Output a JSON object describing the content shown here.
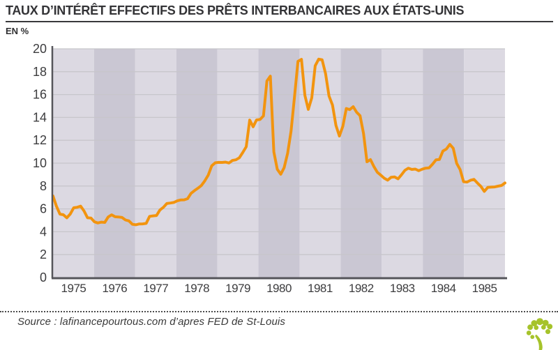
{
  "header": {
    "title": "TAUX D’INTÉRÊT EFFECTIFS DES PRÊTS INTERBANCAIRES AUX ÉTATS-UNIS",
    "unit_label": "EN %"
  },
  "chart_data": {
    "type": "line",
    "title": "TAUX D’INTÉRÊT EFFECTIFS DES PRÊTS INTERBANCAIRES AUX ÉTATS-UNIS",
    "ylabel": "EN %",
    "xlabel": "",
    "ylim": [
      0,
      20
    ],
    "y_ticks": [
      0,
      2,
      4,
      6,
      8,
      10,
      12,
      14,
      16,
      18,
      20
    ],
    "x_tick_labels": [
      "1975",
      "1976",
      "1977",
      "1978",
      "1979",
      "1980",
      "1981",
      "1982",
      "1983",
      "1984",
      "1985"
    ],
    "points_per_year": 12,
    "grid": true,
    "legend": false,
    "background_bands": "alternating by year",
    "values": [
      7.13,
      6.24,
      5.54,
      5.49,
      5.22,
      5.55,
      6.1,
      6.14,
      6.24,
      5.82,
      5.22,
      5.2,
      4.87,
      4.77,
      4.84,
      4.82,
      5.29,
      5.48,
      5.31,
      5.29,
      5.25,
      5.03,
      4.95,
      4.65,
      4.61,
      4.68,
      4.69,
      4.73,
      5.35,
      5.39,
      5.42,
      5.9,
      6.14,
      6.47,
      6.51,
      6.56,
      6.7,
      6.78,
      6.79,
      6.89,
      7.36,
      7.6,
      7.81,
      8.04,
      8.45,
      8.96,
      9.76,
      10.03,
      10.07,
      10.06,
      10.09,
      10.01,
      10.24,
      10.29,
      10.47,
      10.94,
      11.43,
      13.77,
      13.18,
      13.78,
      13.82,
      14.13,
      17.19,
      17.61,
      10.98,
      9.47,
      9.03,
      9.61,
      10.87,
      12.81,
      15.85,
      18.9,
      19.08,
      15.93,
      14.7,
      15.72,
      18.52,
      19.1,
      19.04,
      17.82,
      15.87,
      15.08,
      13.31,
      12.37,
      13.22,
      14.78,
      14.68,
      14.94,
      14.45,
      14.15,
      12.59,
      10.12,
      10.31,
      9.71,
      9.2,
      8.95,
      8.68,
      8.51,
      8.77,
      8.8,
      8.63,
      8.98,
      9.37,
      9.56,
      9.45,
      9.48,
      9.34,
      9.47,
      9.56,
      9.59,
      9.91,
      10.29,
      10.32,
      11.06,
      11.23,
      11.64,
      11.3,
      9.99,
      9.43,
      8.38,
      8.35,
      8.5,
      8.58,
      8.27,
      7.97,
      7.53,
      7.88,
      7.9,
      7.92,
      7.99,
      8.05,
      8.27
    ],
    "colors": {
      "line": "#F2940F",
      "band_light": "#DCD9E2",
      "band_dark": "#CAC7D3",
      "grid": "#C7C6CB",
      "axis": "#55555A",
      "tick_text": "#3C3C3E"
    }
  },
  "footer": {
    "source": "Source : lafinancepourtous.com d’apres FED de St-Louis",
    "logo_icon": "tree-icon",
    "logo_color": "#A6C32B"
  }
}
